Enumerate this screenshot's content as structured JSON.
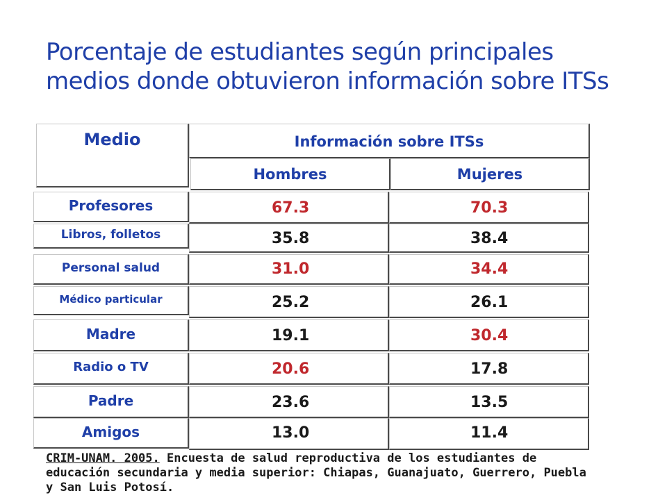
{
  "title_line1": "Porcentaje de estudiantes según principales",
  "title_line2": "medios donde obtuvieron información sobre ITSs",
  "table": {
    "medio_header": "Medio",
    "info_header": "Información sobre ITSs",
    "hombres_header": "Hombres",
    "mujeres_header": "Mujeres",
    "rows": [
      {
        "label": "Profesores",
        "hombres": "67.3",
        "mujeres": "70.3",
        "hombres_color": "#c0282d",
        "mujeres_color": "#c0282d"
      },
      {
        "label": "Libros, folletos",
        "hombres": "35.8",
        "mujeres": "38.4",
        "hombres_color": "#1a1a1a",
        "mujeres_color": "#1a1a1a"
      },
      {
        "label": "Personal salud",
        "hombres": "31.0",
        "mujeres": "34.4",
        "hombres_color": "#c0282d",
        "mujeres_color": "#c0282d"
      },
      {
        "label": "Médico particular",
        "hombres": "25.2",
        "mujeres": "26.1",
        "hombres_color": "#1a1a1a",
        "mujeres_color": "#1a1a1a"
      },
      {
        "label": "Madre",
        "hombres": "19.1",
        "mujeres": "30.4",
        "hombres_color": "#1a1a1a",
        "mujeres_color": "#c0282d"
      },
      {
        "label": "Radio o TV",
        "hombres": "20.6",
        "mujeres": "17.8",
        "hombres_color": "#c0282d",
        "mujeres_color": "#1a1a1a"
      },
      {
        "label": "Padre",
        "hombres": "23.6",
        "mujeres": "13.5",
        "hombres_color": "#1a1a1a",
        "mujeres_color": "#1a1a1a"
      },
      {
        "label": "Amigos",
        "hombres": "13.0",
        "mujeres": "11.4",
        "hombres_color": "#1a1a1a",
        "mujeres_color": "#1a1a1a"
      }
    ]
  },
  "source": {
    "cite": "CRIM-UNAM. 2005.",
    "text": " Encuesta de salud reproductiva de los estudiantes de educación secundaria y media superior: Chiapas, Guanajuato, Guerrero, Puebla y San Luis Potosí."
  }
}
